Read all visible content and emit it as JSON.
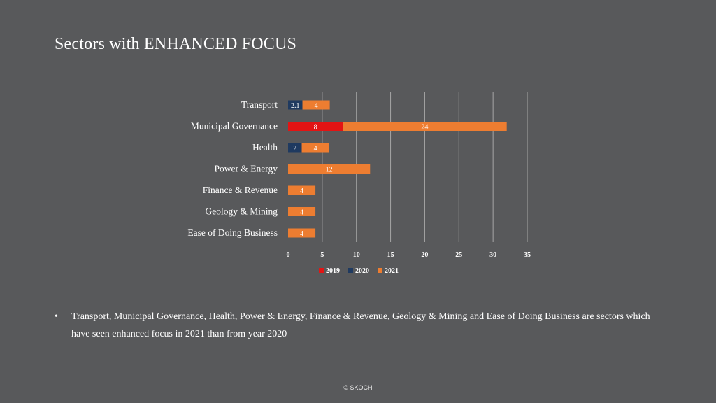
{
  "slide": {
    "title": "Sectors with ENHANCED FOCUS",
    "bullet_marker": "•",
    "bullet_text": "Transport, Municipal Governance, Health, Power & Energy, Finance & Revenue, Geology & Mining and Ease of Doing Business are sectors which have seen enhanced focus in 2021 than from year 2020",
    "footer": "© SKOCH"
  },
  "colors": {
    "background": "#58595b",
    "series_2019": "#e31414",
    "series_2020": "#1f3a60",
    "series_2021": "#ed7d31",
    "grid": "#a6a6a6"
  },
  "chart_data": {
    "type": "bar",
    "orientation": "horizontal",
    "stacked": true,
    "categories": [
      "Transport",
      "Municipal Governance",
      "Health",
      "Power & Energy",
      "Finance & Revenue",
      "Geology & Mining",
      "Ease of Doing Business"
    ],
    "series": [
      {
        "name": "2019",
        "color": "#e31414",
        "values": [
          null,
          8,
          null,
          null,
          null,
          null,
          null
        ]
      },
      {
        "name": "2020",
        "color": "#1f3a60",
        "values": [
          2.1,
          null,
          2,
          null,
          null,
          null,
          null
        ]
      },
      {
        "name": "2021",
        "color": "#ed7d31",
        "values": [
          4,
          24,
          4,
          12,
          4,
          4,
          4
        ]
      }
    ],
    "xlim": [
      0,
      35
    ],
    "xticks": [
      0,
      5,
      10,
      15,
      20,
      25,
      30,
      35
    ],
    "grid": true,
    "legend_position": "bottom",
    "data_labels": true
  }
}
